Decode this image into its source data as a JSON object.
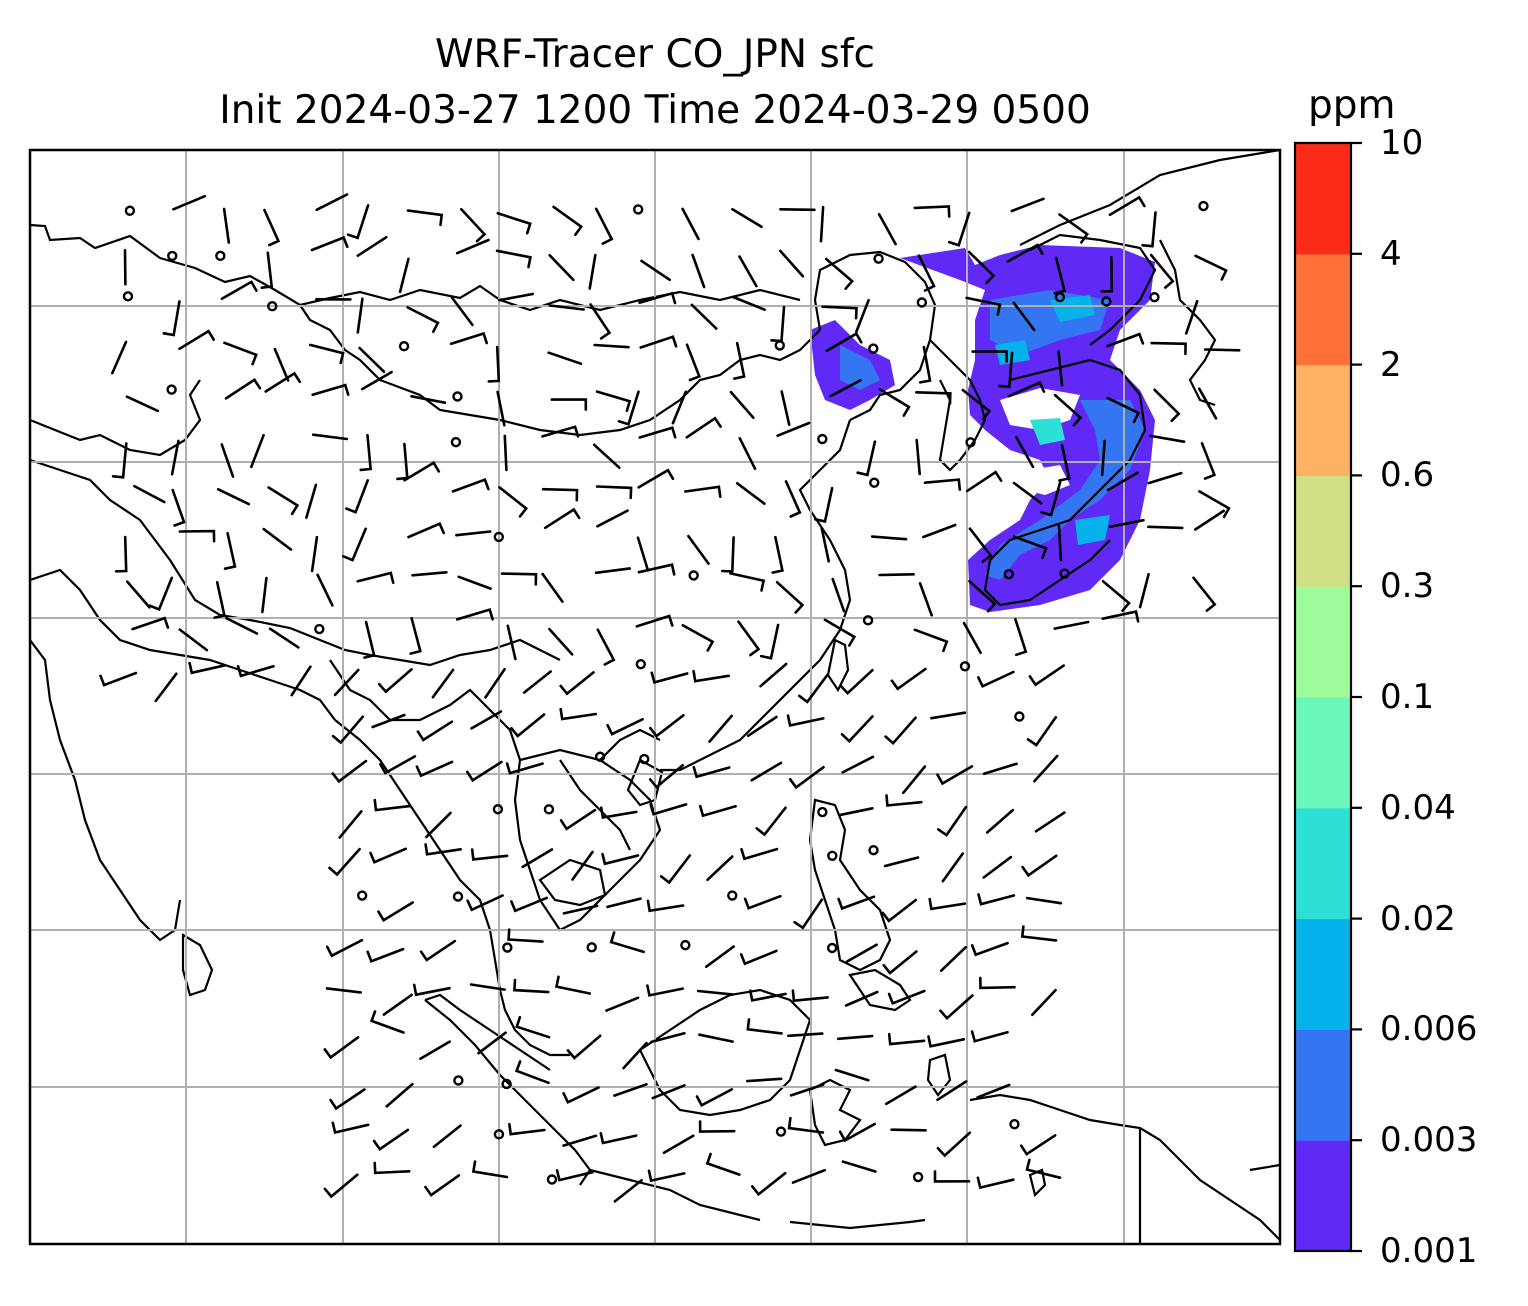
{
  "title": {
    "line1": "WRF-Tracer CO_JPN sfc",
    "line2": "Init 2024-03-27 1200 Time 2024-03-29 0500"
  },
  "colorbar": {
    "units": "ppm",
    "levels": [
      "0.001",
      "0.003",
      "0.006",
      "0.02",
      "0.04",
      "0.1",
      "0.3",
      "0.6",
      "2",
      "4",
      "10"
    ],
    "colors": [
      "#6129f6",
      "#3476f2",
      "#05b2ea",
      "#2edfd5",
      "#69f8b9",
      "#9dfb99",
      "#d0df85",
      "#fdb163",
      "#ff7138",
      "#fc2a18"
    ]
  },
  "map": {
    "region": "East and Southeast Asia",
    "projection_grid": "on",
    "field": "CO tracer (JPN) surface concentration",
    "overlay": "surface wind barbs and calm-wind circles",
    "plume_colors_visible": [
      "#6129f6",
      "#3476f2",
      "#05b2ea",
      "#2edfd5"
    ]
  }
}
